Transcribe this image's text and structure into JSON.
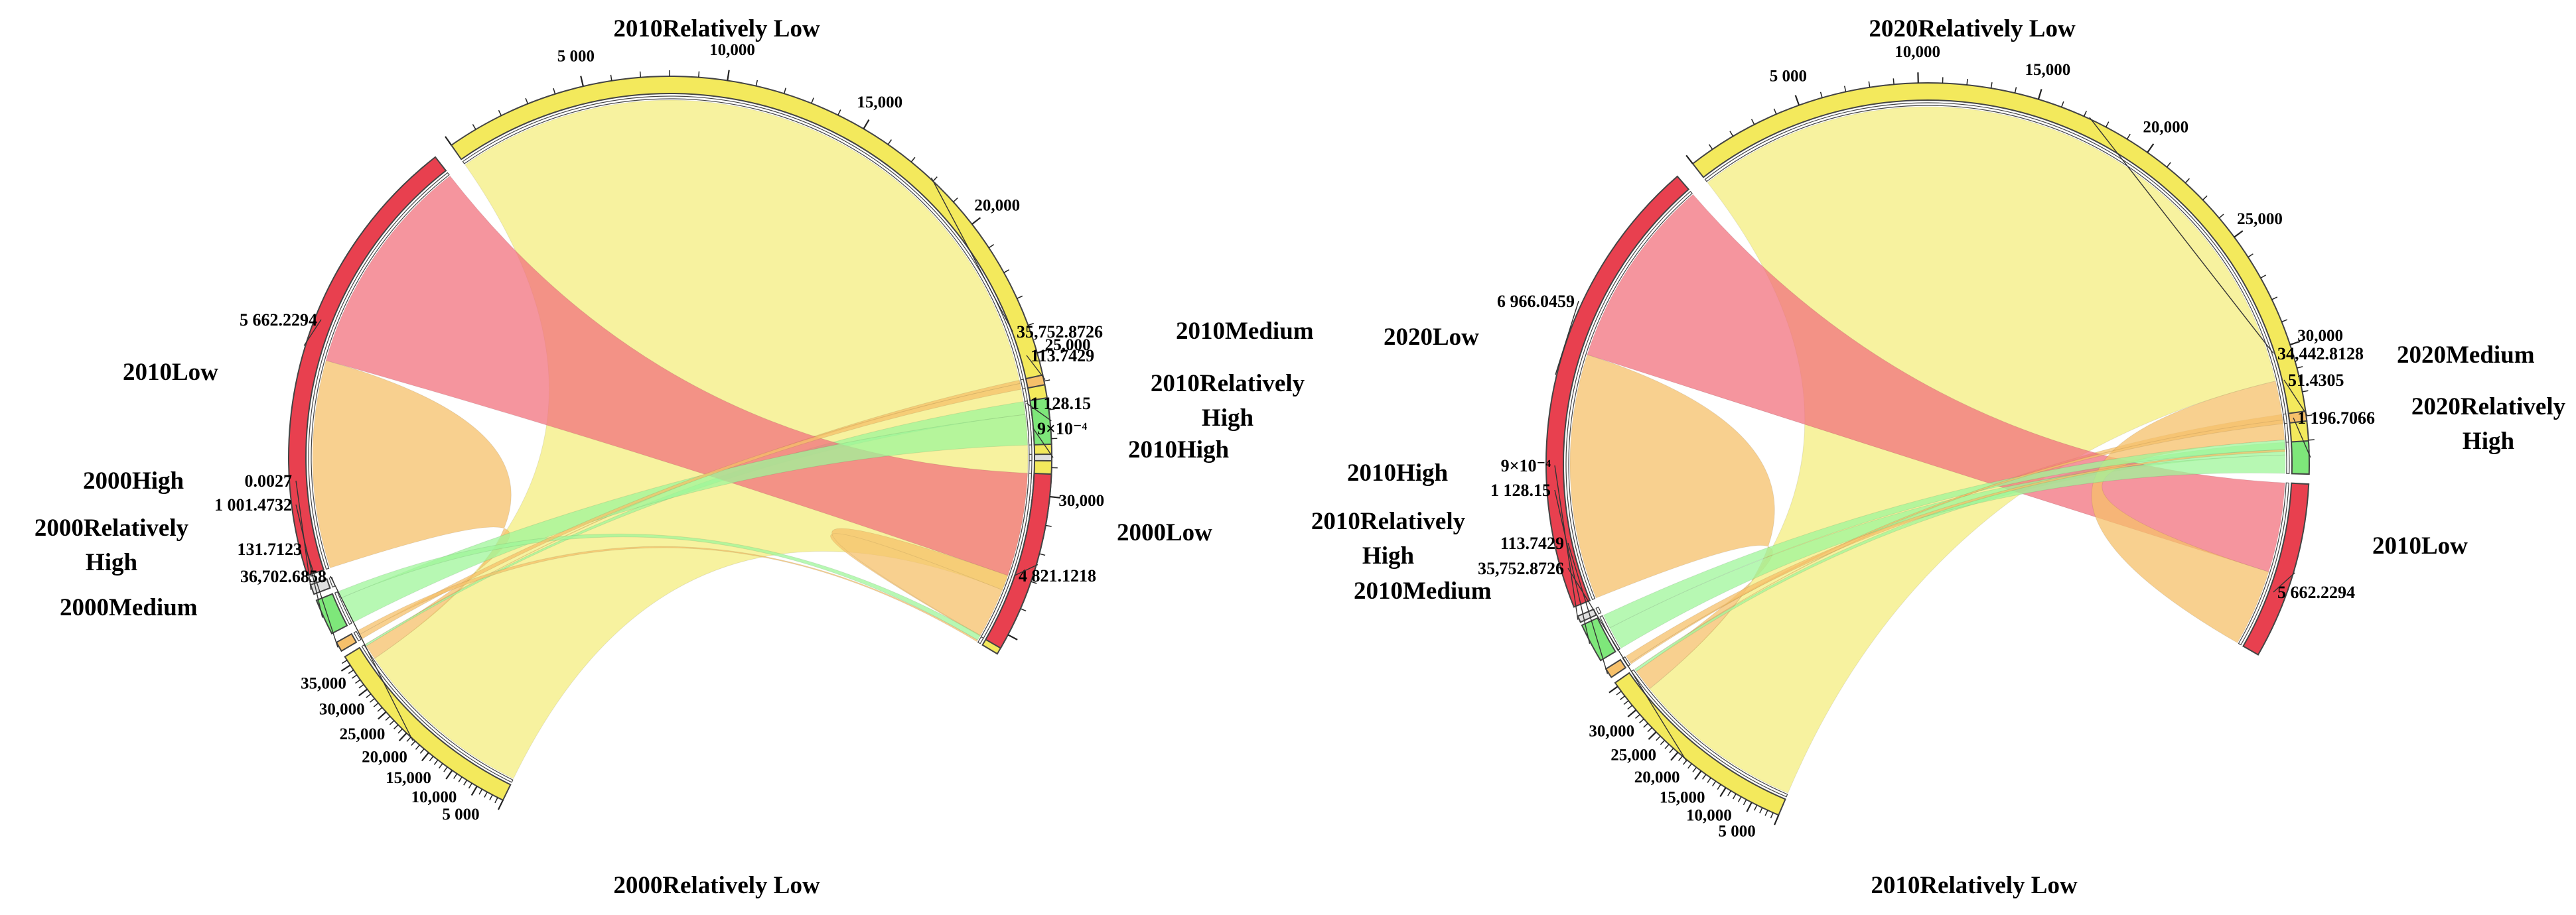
{
  "colors": {
    "relatively_low": "#f7f19a",
    "relatively_low_ring": "#f3e95c",
    "low": "#f2727e",
    "low_ring": "#e8404f",
    "medium": "#f6c06a",
    "relatively_high": "#9ff59a",
    "relatively_high_ring": "#7ee77a",
    "high": "#e0e0e0",
    "outline": "#444444"
  },
  "chart_data": [
    {
      "type": "chord",
      "panel": "left",
      "categories": [
        {
          "id": "2010RL",
          "label": "2010Relatively Low",
          "group": "2010",
          "class": "Relatively Low"
        },
        {
          "id": "2010Low",
          "label": "2010Low",
          "group": "2010",
          "class": "Low"
        },
        {
          "id": "2000High",
          "label": "2000High",
          "group": "2000",
          "class": "High"
        },
        {
          "id": "2000RH",
          "label": "2000Relatively High",
          "group": "2000",
          "class": "Relatively High"
        },
        {
          "id": "2000Medium",
          "label": "2000Medium",
          "group": "2000",
          "class": "Medium"
        },
        {
          "id": "2000RL",
          "label": "2000Relatively Low",
          "group": "2000",
          "class": "Relatively Low"
        },
        {
          "id": "2000Low",
          "label": "2000Low",
          "group": "2000",
          "class": "Low"
        },
        {
          "id": "2010High",
          "label": "2010High",
          "group": "2010",
          "class": "High"
        },
        {
          "id": "2010RH",
          "label": "2010Relatively High",
          "group": "2010",
          "class": "Relatively High"
        },
        {
          "id": "2010Medium",
          "label": "2010Medium",
          "group": "2010",
          "class": "Medium"
        }
      ],
      "values": {
        "2010RL": 35752.8726,
        "2010Low": 5662.2294,
        "2000High": 0.0027,
        "2000RH": 1001.4732,
        "2000Medium": 131.7123,
        "2000RL": 36702.6858,
        "2000Low": 4821.1218,
        "2010High": 0.0009,
        "2010RH": 1128.15,
        "2010Medium": 113.7429
      },
      "value_labels": [
        {
          "text": "5 662.2294",
          "cat": "2010Low"
        },
        {
          "text": "0.0027",
          "cat": "2000High"
        },
        {
          "text": "1 001.4732",
          "cat": "2000RH"
        },
        {
          "text": "131.7123",
          "cat": "2000Medium"
        },
        {
          "text": "36,702.6858",
          "cat": "2000RL"
        },
        {
          "text": "4 821.1218",
          "cat": "2000Low"
        },
        {
          "text": "9×10⁻⁴",
          "cat": "2010High"
        },
        {
          "text": "1 128.15",
          "cat": "2010RH"
        },
        {
          "text": "113.7429",
          "cat": "2010Medium"
        },
        {
          "text": "35,752.8726",
          "cat": "2010RL"
        }
      ],
      "tick_labels": {
        "2010RL": [
          "5 000",
          "10,000",
          "15,000",
          "20,000",
          "25,000",
          "30,000"
        ],
        "2000RL": [
          "5 000",
          "10,000",
          "15,000",
          "20,000",
          "25,000",
          "30,000",
          "35,000"
        ]
      },
      "flows": [
        {
          "source": "2000RL",
          "target": "2010RL",
          "value": 33500
        },
        {
          "source": "2000RL",
          "target": "2010Low",
          "value": 2700
        },
        {
          "source": "2000RL",
          "target": "2010RH",
          "value": 330
        },
        {
          "source": "2000RL",
          "target": "2010Medium",
          "value": 40
        },
        {
          "source": "2000Low",
          "target": "2010Low",
          "value": 2900
        },
        {
          "source": "2000Low",
          "target": "2010RL",
          "value": 1850
        },
        {
          "source": "2000RH",
          "target": "2010RH",
          "value": 780
        },
        {
          "source": "2000RH",
          "target": "2010RL",
          "value": 200
        },
        {
          "source": "2000Medium",
          "target": "2010Medium",
          "value": 70
        },
        {
          "source": "2000Medium",
          "target": "2010RL",
          "value": 60
        }
      ]
    },
    {
      "type": "chord",
      "panel": "right",
      "categories": [
        {
          "id": "2020RL",
          "label": "2020Relatively Low",
          "group": "2020",
          "class": "Relatively Low"
        },
        {
          "id": "2020Low",
          "label": "2020Low",
          "group": "2020",
          "class": "Low"
        },
        {
          "id": "2010High",
          "label": "2010High",
          "group": "2010",
          "class": "High"
        },
        {
          "id": "2010RH",
          "label": "2010Relatively High",
          "group": "2010",
          "class": "Relatively High"
        },
        {
          "id": "2010Medium",
          "label": "2010Medium",
          "group": "2010",
          "class": "Medium"
        },
        {
          "id": "2010RL",
          "label": "2010Relatively Low",
          "group": "2010",
          "class": "Relatively Low"
        },
        {
          "id": "2010Low",
          "label": "2010Low",
          "group": "2010",
          "class": "Low"
        },
        {
          "id": "2020RH",
          "label": "2020Relatively High",
          "group": "2020",
          "class": "Relatively High"
        },
        {
          "id": "2020Medium",
          "label": "2020Medium",
          "group": "2020",
          "class": "Medium"
        }
      ],
      "values": {
        "2020RL": 34442.8128,
        "2020Low": 6966.0459,
        "2010High": 0.0009,
        "2010RH": 1128.15,
        "2010Medium": 113.7429,
        "2010RL": 35752.8726,
        "2010Low": 5662.2294,
        "2020RH": 1196.7066,
        "2020Medium": 51.4305
      },
      "value_labels": [
        {
          "text": "6 966.0459",
          "cat": "2020Low"
        },
        {
          "text": "9×10⁻⁴",
          "cat": "2010High"
        },
        {
          "text": "1 128.15",
          "cat": "2010RH"
        },
        {
          "text": "113.7429",
          "cat": "2010Medium"
        },
        {
          "text": "35,752.8726",
          "cat": "2010RL"
        },
        {
          "text": "5 662.2294",
          "cat": "2010Low"
        },
        {
          "text": "1 196.7066",
          "cat": "2020RH"
        },
        {
          "text": "51.4305",
          "cat": "2020Medium"
        },
        {
          "text": "34,442.8128",
          "cat": "2020RL"
        }
      ],
      "tick_labels": {
        "2020RL": [
          "5 000",
          "10,000",
          "15,000",
          "20,000",
          "25,000",
          "30,000"
        ],
        "2010RL": [
          "5 000",
          "10,000",
          "15,000",
          "20,000",
          "25,000",
          "30,000"
        ]
      },
      "flows": [
        {
          "source": "2010RL",
          "target": "2020RL",
          "value": 31300
        },
        {
          "source": "2010RL",
          "target": "2020Low",
          "value": 3900
        },
        {
          "source": "2010RL",
          "target": "2020RH",
          "value": 480
        },
        {
          "source": "2010RL",
          "target": "2020Medium",
          "value": 30
        },
        {
          "source": "2010Low",
          "target": "2020Low",
          "value": 3050
        },
        {
          "source": "2010Low",
          "target": "2020RL",
          "value": 2610
        },
        {
          "source": "2010RH",
          "target": "2020RH",
          "value": 700
        },
        {
          "source": "2010RH",
          "target": "2020RL",
          "value": 425
        },
        {
          "source": "2010Medium",
          "target": "2020Medium",
          "value": 20
        },
        {
          "source": "2010Medium",
          "target": "2020RL",
          "value": 90
        }
      ]
    }
  ]
}
